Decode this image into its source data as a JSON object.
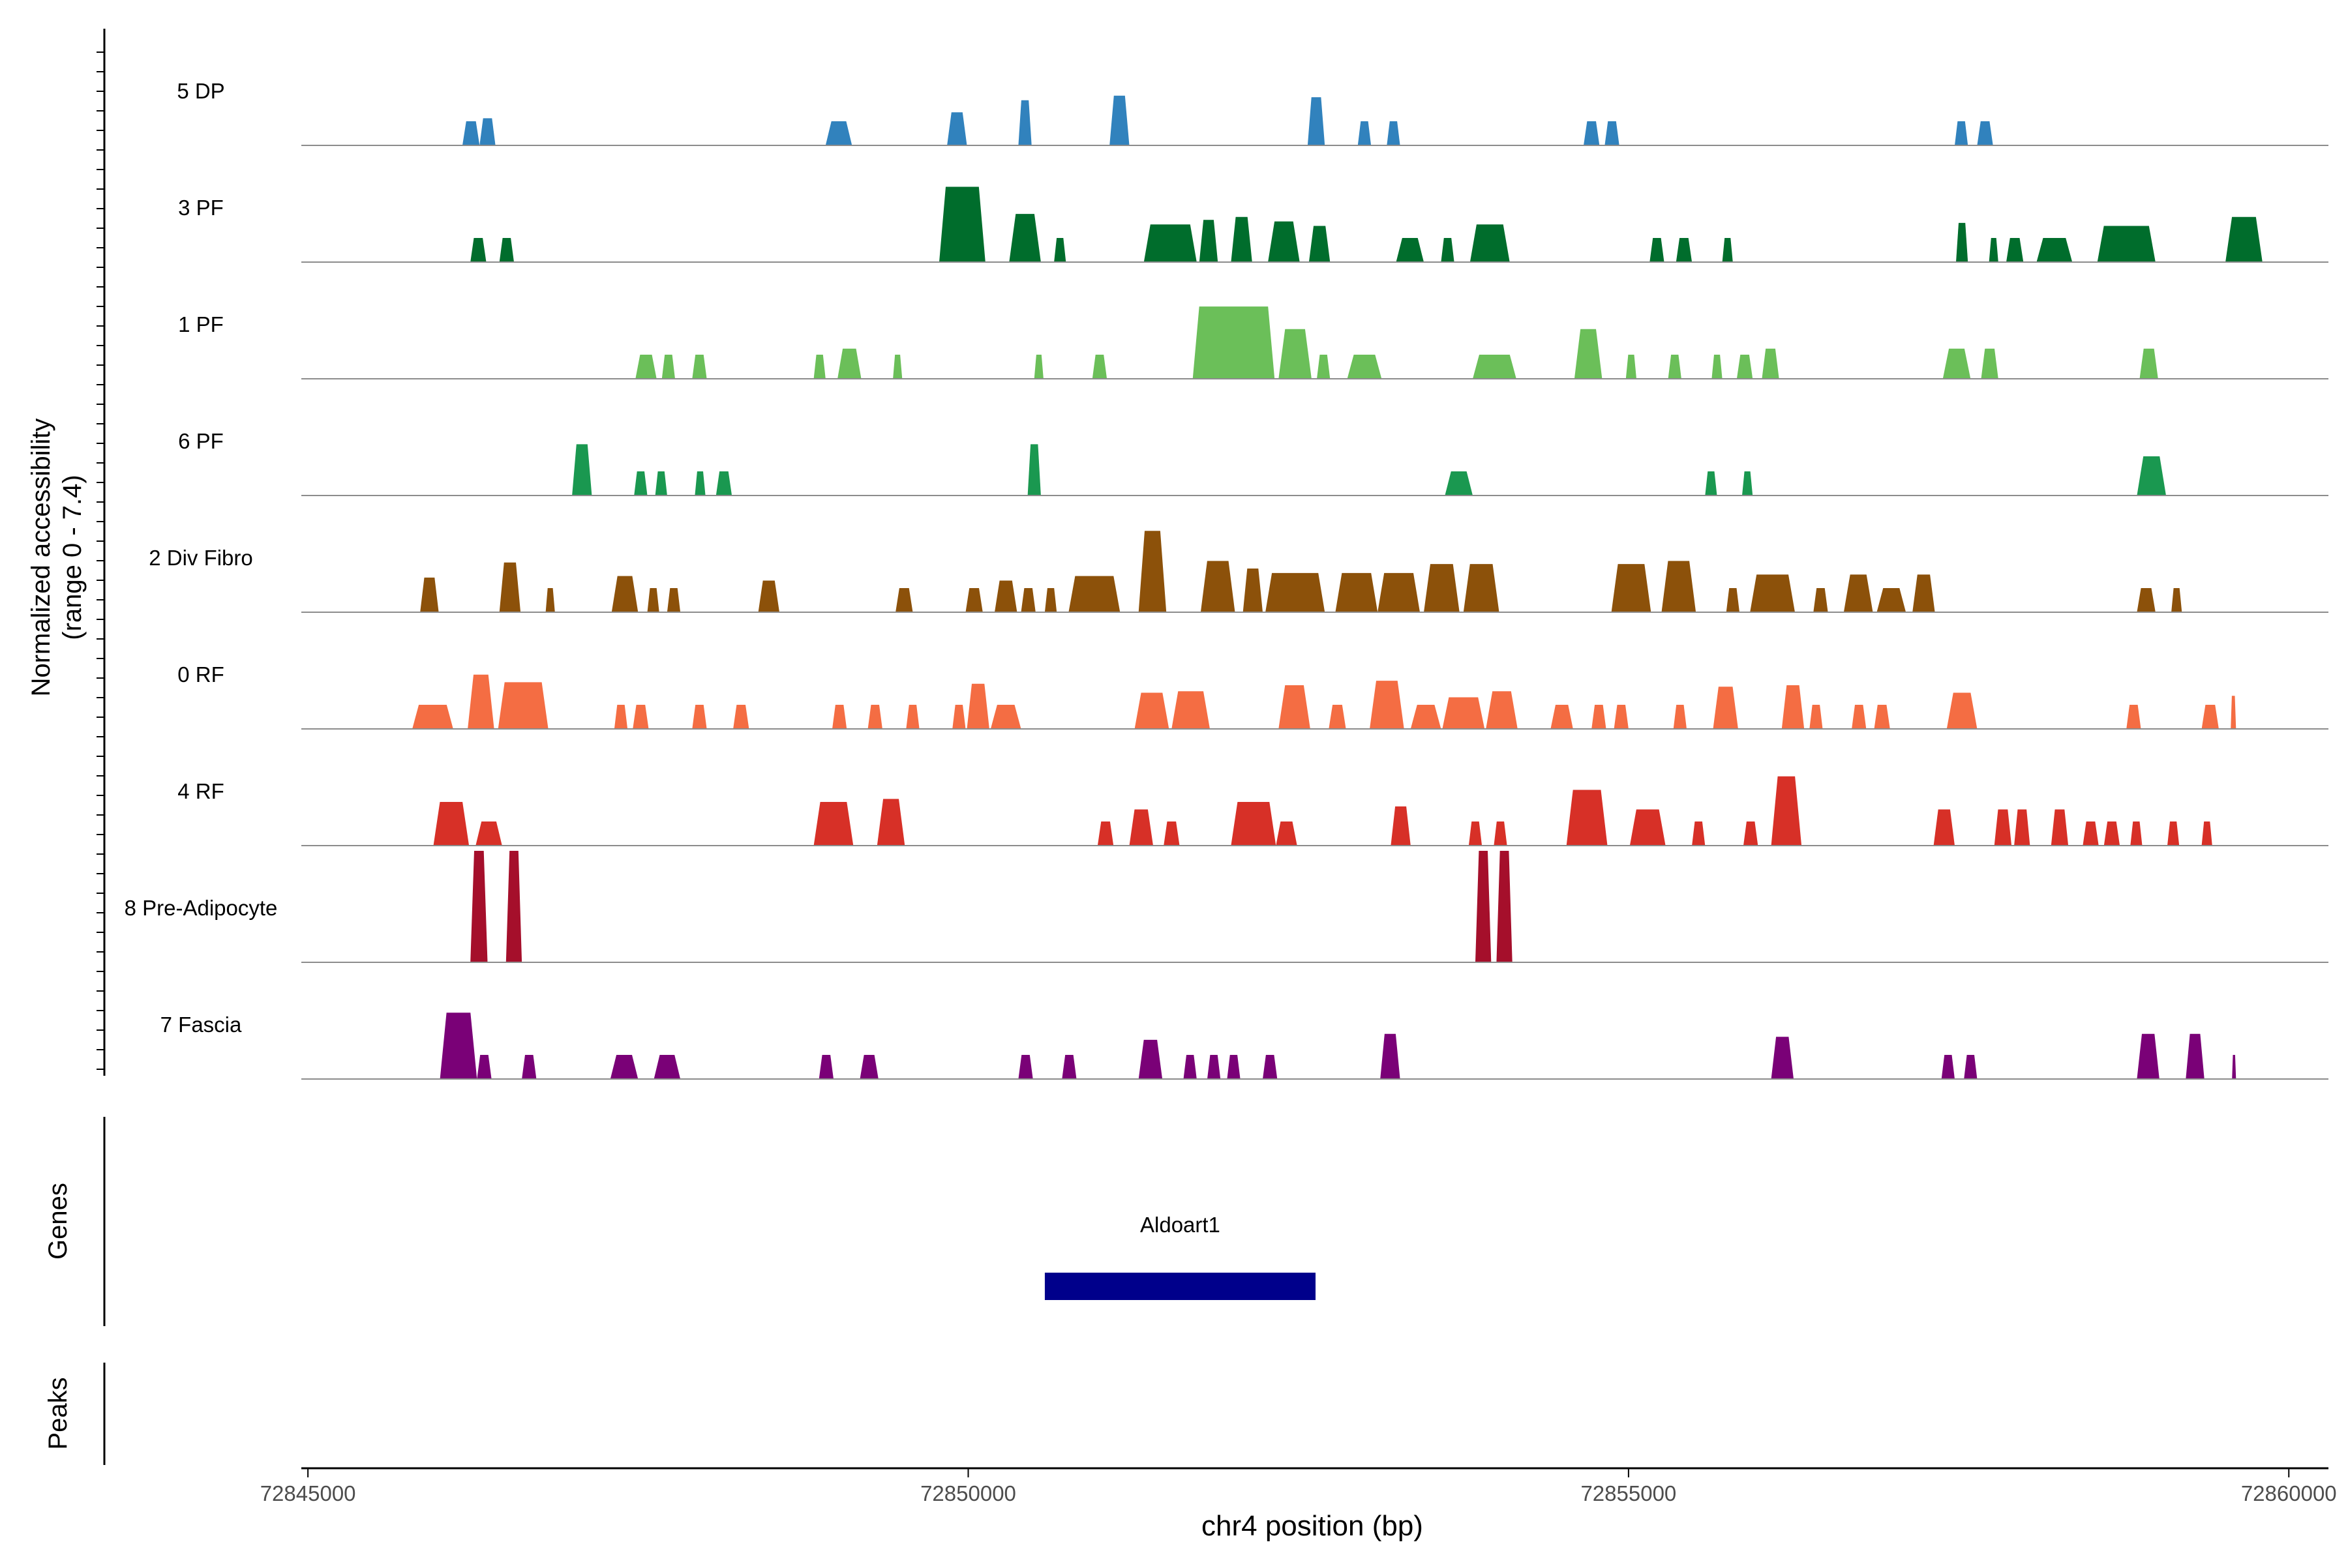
{
  "chart_data": {
    "type": "area",
    "title": "",
    "ylabel_line1": "Normalized accessibility",
    "ylabel_line2": "(range 0 - 7.4)",
    "y_range": [
      0,
      7.4
    ],
    "xlabel": "chr4 position (bp)",
    "x_range": [
      72844950,
      72860300
    ],
    "x_ticks": [
      72845000,
      72850000,
      72855000,
      72860000
    ],
    "x_tick_labels": [
      "72845000",
      "72850000",
      "72855000",
      "72860000"
    ],
    "genes_label": "Genes",
    "peaks_label": "Peaks",
    "genes": [
      {
        "name": "Aldoart1",
        "start": 72850580,
        "end": 72852630,
        "color": "#00008B"
      }
    ],
    "tracks": [
      {
        "name": "5 DP",
        "color": "#3182BD",
        "peaks": [
          [
            72846170,
            72846300,
            1.6
          ],
          [
            72846300,
            72846420,
            1.8
          ],
          [
            72848920,
            72849120,
            1.6
          ],
          [
            72849840,
            72849990,
            2.2
          ],
          [
            72850380,
            72850480,
            3.0
          ],
          [
            72851070,
            72851220,
            3.3
          ],
          [
            72852570,
            72852700,
            3.2
          ],
          [
            72852950,
            72853050,
            1.6
          ],
          [
            72853170,
            72853270,
            1.6
          ],
          [
            72854660,
            72854780,
            1.6
          ],
          [
            72854820,
            72854930,
            1.6
          ],
          [
            72857470,
            72857570,
            1.6
          ],
          [
            72857640,
            72857760,
            1.6
          ]
        ]
      },
      {
        "name": "3 PF",
        "color": "#006D2C",
        "peaks": [
          [
            72846230,
            72846350,
            1.6
          ],
          [
            72846450,
            72846560,
            1.6
          ],
          [
            72849780,
            72850130,
            5.0
          ],
          [
            72850310,
            72850550,
            3.2
          ],
          [
            72850650,
            72850740,
            1.6
          ],
          [
            72851330,
            72851730,
            2.5
          ],
          [
            72851750,
            72851890,
            2.8
          ],
          [
            72851990,
            72852150,
            3.0
          ],
          [
            72852270,
            72852510,
            2.7
          ],
          [
            72852580,
            72852740,
            2.4
          ],
          [
            72853240,
            72853450,
            1.6
          ],
          [
            72853580,
            72853680,
            1.6
          ],
          [
            72853800,
            72854100,
            2.5
          ],
          [
            72855160,
            72855270,
            1.6
          ],
          [
            72855360,
            72855480,
            1.6
          ],
          [
            72855710,
            72855790,
            1.6
          ],
          [
            72857480,
            72857570,
            2.6
          ],
          [
            72857730,
            72857800,
            1.6
          ],
          [
            72857860,
            72857990,
            1.6
          ],
          [
            72858090,
            72858360,
            1.6
          ],
          [
            72858550,
            72858990,
            2.4
          ],
          [
            72859520,
            72859800,
            3.0
          ]
        ]
      },
      {
        "name": "1 PF",
        "color": "#6BBF59",
        "peaks": [
          [
            72847480,
            72847640,
            1.6
          ],
          [
            72847680,
            72847780,
            1.6
          ],
          [
            72847910,
            72848020,
            1.6
          ],
          [
            72848830,
            72848920,
            1.6
          ],
          [
            72849010,
            72849190,
            2.0
          ],
          [
            72849430,
            72849500,
            1.6
          ],
          [
            72850500,
            72850570,
            1.6
          ],
          [
            72850940,
            72851050,
            1.6
          ],
          [
            72851700,
            72852320,
            4.8
          ],
          [
            72852350,
            72852600,
            3.3
          ],
          [
            72852640,
            72852740,
            1.6
          ],
          [
            72852870,
            72853130,
            1.6
          ],
          [
            72853820,
            72854150,
            1.6
          ],
          [
            72854590,
            72854800,
            3.3
          ],
          [
            72854980,
            72855060,
            1.6
          ],
          [
            72855300,
            72855400,
            1.6
          ],
          [
            72855630,
            72855710,
            1.6
          ],
          [
            72855820,
            72855940,
            1.6
          ],
          [
            72856010,
            72856140,
            2.0
          ],
          [
            72857380,
            72857590,
            2.0
          ],
          [
            72857670,
            72857800,
            2.0
          ],
          [
            72858870,
            72859010,
            2.0
          ]
        ]
      },
      {
        "name": "6 PF",
        "color": "#1A9850",
        "peaks": [
          [
            72847000,
            72847150,
            3.4
          ],
          [
            72847470,
            72847570,
            1.6
          ],
          [
            72847630,
            72847720,
            1.6
          ],
          [
            72847930,
            72848010,
            1.6
          ],
          [
            72848090,
            72848210,
            1.6
          ],
          [
            72850450,
            72850550,
            3.4
          ],
          [
            72853610,
            72853820,
            1.6
          ],
          [
            72855580,
            72855670,
            1.6
          ],
          [
            72855860,
            72855940,
            1.6
          ],
          [
            72858850,
            72859070,
            2.6
          ]
        ]
      },
      {
        "name": "2 Div Fibro",
        "color": "#8C510A",
        "peaks": [
          [
            72845850,
            72845990,
            2.3
          ],
          [
            72846450,
            72846610,
            3.3
          ],
          [
            72846800,
            72846870,
            1.6
          ],
          [
            72847300,
            72847500,
            2.4
          ],
          [
            72847570,
            72847660,
            1.6
          ],
          [
            72847720,
            72847820,
            1.6
          ],
          [
            72848410,
            72848570,
            2.1
          ],
          [
            72849450,
            72849580,
            1.6
          ],
          [
            72849980,
            72850110,
            1.6
          ],
          [
            72850200,
            72850370,
            2.1
          ],
          [
            72850400,
            72850510,
            1.6
          ],
          [
            72850580,
            72850670,
            1.6
          ],
          [
            72850760,
            72851150,
            2.4
          ],
          [
            72851290,
            72851500,
            5.4
          ],
          [
            72851760,
            72852020,
            3.4
          ],
          [
            72852080,
            72852230,
            2.9
          ],
          [
            72852250,
            72852700,
            2.6
          ],
          [
            72852780,
            72853100,
            2.6
          ],
          [
            72853100,
            72853420,
            2.6
          ],
          [
            72853450,
            72853720,
            3.2
          ],
          [
            72853750,
            72854020,
            3.2
          ],
          [
            72854870,
            72855170,
            3.2
          ],
          [
            72855250,
            72855510,
            3.4
          ],
          [
            72855740,
            72855840,
            1.6
          ],
          [
            72855920,
            72856260,
            2.5
          ],
          [
            72856400,
            72856510,
            1.6
          ],
          [
            72856630,
            72856850,
            2.5
          ],
          [
            72856880,
            72857100,
            1.6
          ],
          [
            72857150,
            72857320,
            2.5
          ],
          [
            72858850,
            72858990,
            1.6
          ],
          [
            72859110,
            72859190,
            1.6
          ]
        ]
      },
      {
        "name": "0 RF",
        "color": "#F46D43",
        "peaks": [
          [
            72845790,
            72846100,
            1.6
          ],
          [
            72846210,
            72846410,
            3.6
          ],
          [
            72846440,
            72846820,
            3.1
          ],
          [
            72847320,
            72847420,
            1.6
          ],
          [
            72847460,
            72847580,
            1.6
          ],
          [
            72847910,
            72848020,
            1.6
          ],
          [
            72848220,
            72848340,
            1.6
          ],
          [
            72848970,
            72849080,
            1.6
          ],
          [
            72849240,
            72849350,
            1.6
          ],
          [
            72849530,
            72849630,
            1.6
          ],
          [
            72849880,
            72849980,
            1.6
          ],
          [
            72849990,
            72850160,
            3.0
          ],
          [
            72850170,
            72850400,
            1.6
          ],
          [
            72851260,
            72851520,
            2.4
          ],
          [
            72851540,
            72851830,
            2.5
          ],
          [
            72852350,
            72852590,
            2.9
          ],
          [
            72852730,
            72852860,
            1.6
          ],
          [
            72853040,
            72853300,
            3.2
          ],
          [
            72853350,
            72853580,
            1.6
          ],
          [
            72853590,
            72853910,
            2.1
          ],
          [
            72853920,
            72854160,
            2.5
          ],
          [
            72854410,
            72854580,
            1.6
          ],
          [
            72854720,
            72854830,
            1.6
          ],
          [
            72854890,
            72855000,
            1.6
          ],
          [
            72855340,
            72855440,
            1.6
          ],
          [
            72855640,
            72855830,
            2.8
          ],
          [
            72856160,
            72856330,
            2.9
          ],
          [
            72856370,
            72856470,
            1.6
          ],
          [
            72856690,
            72856800,
            1.6
          ],
          [
            72856860,
            72856980,
            1.6
          ],
          [
            72857410,
            72857640,
            2.4
          ],
          [
            72858770,
            72858880,
            1.6
          ],
          [
            72859340,
            72859470,
            1.6
          ],
          [
            72859560,
            72859600,
            2.2
          ]
        ]
      },
      {
        "name": "4 RF",
        "color": "#D73027",
        "peaks": [
          [
            72845950,
            72846220,
            2.9
          ],
          [
            72846270,
            72846470,
            1.6
          ],
          [
            72848830,
            72849130,
            2.9
          ],
          [
            72849310,
            72849520,
            3.1
          ],
          [
            72850980,
            72851100,
            1.6
          ],
          [
            72851220,
            72851400,
            2.4
          ],
          [
            72851480,
            72851600,
            1.6
          ],
          [
            72851990,
            72852330,
            2.9
          ],
          [
            72852330,
            72852490,
            1.6
          ],
          [
            72853200,
            72853350,
            2.6
          ],
          [
            72853790,
            72853890,
            1.6
          ],
          [
            72853980,
            72854080,
            1.6
          ],
          [
            72854530,
            72854840,
            3.7
          ],
          [
            72855010,
            72855280,
            2.4
          ],
          [
            72855480,
            72855580,
            1.6
          ],
          [
            72855870,
            72855980,
            1.6
          ],
          [
            72856080,
            72856310,
            4.6
          ],
          [
            72857310,
            72857470,
            2.4
          ],
          [
            72857770,
            72857900,
            2.4
          ],
          [
            72857920,
            72858040,
            2.4
          ],
          [
            72858200,
            72858330,
            2.4
          ],
          [
            72858440,
            72858560,
            1.6
          ],
          [
            72858600,
            72858720,
            1.6
          ],
          [
            72858800,
            72858890,
            1.6
          ],
          [
            72859080,
            72859170,
            1.6
          ],
          [
            72859340,
            72859420,
            1.6
          ]
        ]
      },
      {
        "name": "8 Pre-Adipocyte",
        "color": "#A50F2B",
        "peaks": [
          [
            72846230,
            72846360,
            7.4
          ],
          [
            72846500,
            72846620,
            7.4
          ],
          [
            72853840,
            72853960,
            7.4
          ],
          [
            72854000,
            72854120,
            7.4
          ]
        ]
      },
      {
        "name": "7 Fascia",
        "color": "#7A0177",
        "peaks": [
          [
            72846000,
            72846280,
            4.4
          ],
          [
            72846280,
            72846390,
            1.6
          ],
          [
            72846620,
            72846730,
            1.6
          ],
          [
            72847290,
            72847500,
            1.6
          ],
          [
            72847620,
            72847820,
            1.6
          ],
          [
            72848870,
            72848980,
            1.6
          ],
          [
            72849180,
            72849320,
            1.6
          ],
          [
            72850380,
            72850490,
            1.6
          ],
          [
            72850710,
            72850820,
            1.6
          ],
          [
            72851290,
            72851470,
            2.6
          ],
          [
            72851630,
            72851730,
            1.6
          ],
          [
            72851810,
            72851910,
            1.6
          ],
          [
            72851960,
            72852060,
            1.6
          ],
          [
            72852230,
            72852340,
            1.6
          ],
          [
            72853120,
            72853270,
            3.0
          ],
          [
            72856080,
            72856250,
            2.8
          ],
          [
            72857370,
            72857470,
            1.6
          ],
          [
            72857540,
            72857640,
            1.6
          ],
          [
            72858850,
            72859020,
            3.0
          ],
          [
            72859220,
            72859360,
            3.0
          ],
          [
            72859570,
            72859600,
            1.6
          ]
        ]
      }
    ]
  }
}
